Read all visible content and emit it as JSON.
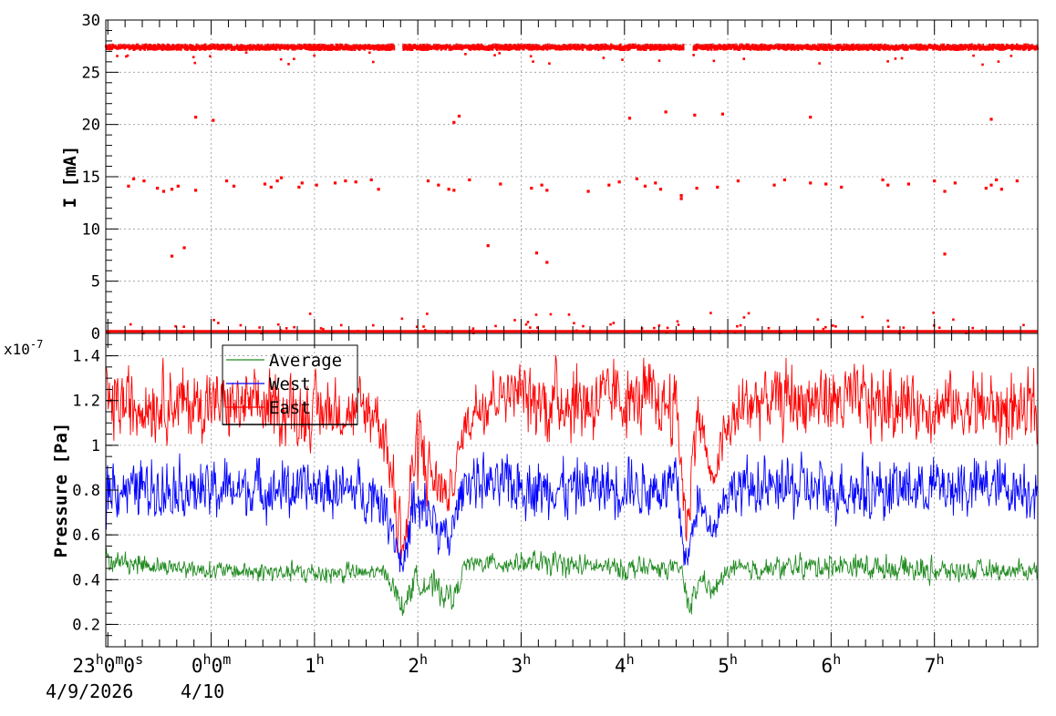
{
  "chart_data": [
    {
      "type": "scatter",
      "ylabel": "I [mA]",
      "ylim": [
        0,
        30
      ],
      "yticks": [
        0,
        5,
        10,
        15,
        20,
        25,
        30
      ],
      "grid": true,
      "series": [
        {
          "color": "#ff0000",
          "points": [
            [
              -0.8,
              14.1
            ],
            [
              -0.75,
              14.8
            ],
            [
              -0.65,
              14.6
            ],
            [
              -0.52,
              13.9
            ],
            [
              -0.46,
              13.6
            ],
            [
              -0.38,
              13.8
            ],
            [
              -0.32,
              14.1
            ],
            [
              -0.38,
              7.4
            ],
            [
              -0.26,
              8.2
            ],
            [
              -0.15,
              20.7
            ],
            [
              0.02,
              20.4
            ],
            [
              -0.15,
              13.7
            ],
            [
              0.15,
              14.6
            ],
            [
              0.22,
              14.1
            ],
            [
              0.52,
              14.3
            ],
            [
              0.58,
              14.0
            ],
            [
              0.64,
              14.6
            ],
            [
              0.68,
              14.9
            ],
            [
              0.85,
              14.0
            ],
            [
              0.88,
              14.4
            ],
            [
              1.02,
              14.2
            ],
            [
              1.2,
              14.4
            ],
            [
              1.3,
              14.6
            ],
            [
              1.4,
              14.5
            ],
            [
              1.55,
              14.7
            ],
            [
              1.62,
              13.8
            ],
            [
              2.1,
              14.6
            ],
            [
              2.2,
              14.2
            ],
            [
              2.3,
              13.8
            ],
            [
              2.35,
              13.7
            ],
            [
              2.4,
              20.8
            ],
            [
              2.35,
              20.2
            ],
            [
              2.5,
              14.7
            ],
            [
              2.68,
              8.4
            ],
            [
              2.8,
              14.3
            ],
            [
              3.1,
              13.9
            ],
            [
              3.15,
              7.7
            ],
            [
              3.2,
              14.2
            ],
            [
              3.25,
              13.7
            ],
            [
              3.25,
              6.8
            ],
            [
              3.65,
              13.6
            ],
            [
              3.85,
              14.2
            ],
            [
              3.95,
              14.5
            ],
            [
              4.05,
              20.6
            ],
            [
              4.12,
              14.8
            ],
            [
              4.2,
              14.1
            ],
            [
              4.3,
              14.4
            ],
            [
              4.35,
              13.8
            ],
            [
              4.4,
              21.2
            ],
            [
              4.55,
              13.2
            ],
            [
              4.55,
              12.9
            ],
            [
              4.68,
              20.9
            ],
            [
              4.7,
              13.9
            ],
            [
              4.9,
              14.0
            ],
            [
              4.95,
              21.0
            ],
            [
              5.1,
              14.6
            ],
            [
              5.45,
              14.2
            ],
            [
              5.55,
              14.7
            ],
            [
              5.8,
              14.4
            ],
            [
              5.8,
              20.7
            ],
            [
              5.95,
              14.3
            ],
            [
              6.1,
              14.0
            ],
            [
              6.5,
              14.7
            ],
            [
              6.55,
              14.2
            ],
            [
              6.75,
              14.3
            ],
            [
              7.0,
              14.6
            ],
            [
              7.1,
              13.6
            ],
            [
              7.2,
              14.4
            ],
            [
              7.1,
              7.6
            ],
            [
              7.5,
              13.9
            ],
            [
              7.55,
              14.2
            ],
            [
              7.6,
              14.7
            ],
            [
              7.8,
              14.6
            ],
            [
              7.55,
              20.5
            ],
            [
              7.65,
              13.8
            ]
          ]
        }
      ],
      "band": {
        "center": 27.4,
        "spread": 0.25,
        "gaps": [
          [
            1.78,
            1.85
          ],
          [
            4.58,
            4.66
          ]
        ]
      },
      "baseline": {
        "value": 0.2
      }
    },
    {
      "type": "line",
      "ylabel": "Pressure [Pa]",
      "yscale_label": "x10",
      "yscale_exponent": "-7",
      "ylim": [
        0.1,
        1.5
      ],
      "yticks": [
        "0.2",
        "0.4",
        "0.6",
        "0.8",
        "1",
        "1.2",
        "1.4"
      ],
      "grid": true,
      "legend": {
        "placement": "top-left",
        "entries": [
          {
            "label": "Average",
            "color": "#228B22"
          },
          {
            "label": "West",
            "color": "#0000ff"
          },
          {
            "label": "East",
            "color": "#ff0000"
          }
        ]
      },
      "series": [
        {
          "name": "East",
          "color": "#ff0000",
          "envelope": [
            [
              -1.0,
              0.95,
              1.42
            ],
            [
              -0.2,
              0.95,
              1.42
            ],
            [
              0.2,
              0.95,
              1.42
            ],
            [
              0.9,
              0.95,
              1.35
            ],
            [
              1.6,
              0.92,
              1.38
            ],
            [
              1.7,
              0.82,
              1.2
            ],
            [
              1.8,
              0.45,
              0.9
            ],
            [
              1.87,
              0.4,
              0.7
            ],
            [
              1.95,
              0.7,
              1.15
            ],
            [
              2.05,
              0.65,
              1.3
            ],
            [
              2.15,
              0.6,
              1.1
            ],
            [
              2.3,
              0.62,
              0.9
            ],
            [
              2.45,
              0.95,
              1.2
            ],
            [
              2.6,
              1.0,
              1.4
            ],
            [
              2.95,
              1.1,
              1.4
            ],
            [
              3.1,
              0.95,
              1.45
            ],
            [
              3.6,
              0.95,
              1.45
            ],
            [
              4.1,
              0.95,
              1.45
            ],
            [
              4.5,
              0.95,
              1.4
            ],
            [
              4.6,
              0.45,
              0.8
            ],
            [
              4.7,
              0.95,
              1.4
            ],
            [
              4.85,
              0.75,
              0.9
            ],
            [
              4.95,
              0.85,
              1.2
            ],
            [
              5.2,
              0.95,
              1.45
            ],
            [
              6.0,
              0.95,
              1.45
            ],
            [
              7.0,
              0.95,
              1.4
            ],
            [
              8.0,
              0.9,
              1.4
            ]
          ]
        },
        {
          "name": "West",
          "color": "#0000ff",
          "envelope": [
            [
              -1.0,
              0.62,
              1.0
            ],
            [
              0.5,
              0.6,
              1.0
            ],
            [
              1.0,
              0.62,
              0.98
            ],
            [
              1.6,
              0.6,
              0.98
            ],
            [
              1.75,
              0.5,
              0.8
            ],
            [
              1.85,
              0.35,
              0.55
            ],
            [
              1.95,
              0.45,
              0.95
            ],
            [
              2.1,
              0.5,
              0.9
            ],
            [
              2.3,
              0.42,
              0.7
            ],
            [
              2.45,
              0.7,
              1.0
            ],
            [
              3.0,
              0.62,
              1.0
            ],
            [
              4.0,
              0.62,
              1.0
            ],
            [
              4.5,
              0.62,
              1.0
            ],
            [
              4.6,
              0.35,
              0.55
            ],
            [
              4.7,
              0.6,
              0.9
            ],
            [
              4.85,
              0.55,
              0.7
            ],
            [
              5.0,
              0.62,
              1.0
            ],
            [
              6.0,
              0.6,
              1.0
            ],
            [
              7.0,
              0.62,
              1.0
            ],
            [
              8.0,
              0.62,
              1.0
            ]
          ]
        },
        {
          "name": "Average",
          "color": "#228B22",
          "envelope": [
            [
              -1.0,
              0.42,
              0.55
            ],
            [
              0.0,
              0.38,
              0.5
            ],
            [
              1.0,
              0.36,
              0.5
            ],
            [
              1.7,
              0.38,
              0.48
            ],
            [
              1.85,
              0.18,
              0.35
            ],
            [
              1.95,
              0.3,
              0.48
            ],
            [
              2.15,
              0.26,
              0.48
            ],
            [
              2.35,
              0.24,
              0.4
            ],
            [
              2.45,
              0.42,
              0.52
            ],
            [
              3.0,
              0.4,
              0.55
            ],
            [
              4.0,
              0.38,
              0.52
            ],
            [
              4.55,
              0.4,
              0.5
            ],
            [
              4.62,
              0.18,
              0.35
            ],
            [
              4.75,
              0.35,
              0.48
            ],
            [
              4.85,
              0.28,
              0.4
            ],
            [
              5.0,
              0.38,
              0.5
            ],
            [
              6.0,
              0.38,
              0.55
            ],
            [
              7.0,
              0.36,
              0.52
            ],
            [
              8.0,
              0.38,
              0.5
            ]
          ]
        }
      ]
    }
  ],
  "time_axis": {
    "major_ticks": [
      {
        "t": -1,
        "hour": "23",
        "rest": [
          [
            "h",
            true
          ],
          [
            "0",
            false
          ],
          [
            "m",
            true
          ],
          [
            "0",
            false
          ],
          [
            "s",
            true
          ]
        ]
      },
      {
        "t": 0,
        "hour": "0",
        "rest": [
          [
            "h",
            true
          ],
          [
            "0",
            false
          ],
          [
            "m",
            true
          ]
        ]
      },
      {
        "t": 1,
        "hour": "1",
        "rest": [
          [
            "h",
            true
          ]
        ]
      },
      {
        "t": 2,
        "hour": "2",
        "rest": [
          [
            "h",
            true
          ]
        ]
      },
      {
        "t": 3,
        "hour": "3",
        "rest": [
          [
            "h",
            true
          ]
        ]
      },
      {
        "t": 4,
        "hour": "4",
        "rest": [
          [
            "h",
            true
          ]
        ]
      },
      {
        "t": 5,
        "hour": "5",
        "rest": [
          [
            "h",
            true
          ]
        ]
      },
      {
        "t": 6,
        "hour": "6",
        "rest": [
          [
            "h",
            true
          ]
        ]
      },
      {
        "t": 7,
        "hour": "7",
        "rest": [
          [
            "h",
            true
          ]
        ]
      }
    ],
    "date_start": "4/9/2026",
    "date_next": "4/10"
  }
}
